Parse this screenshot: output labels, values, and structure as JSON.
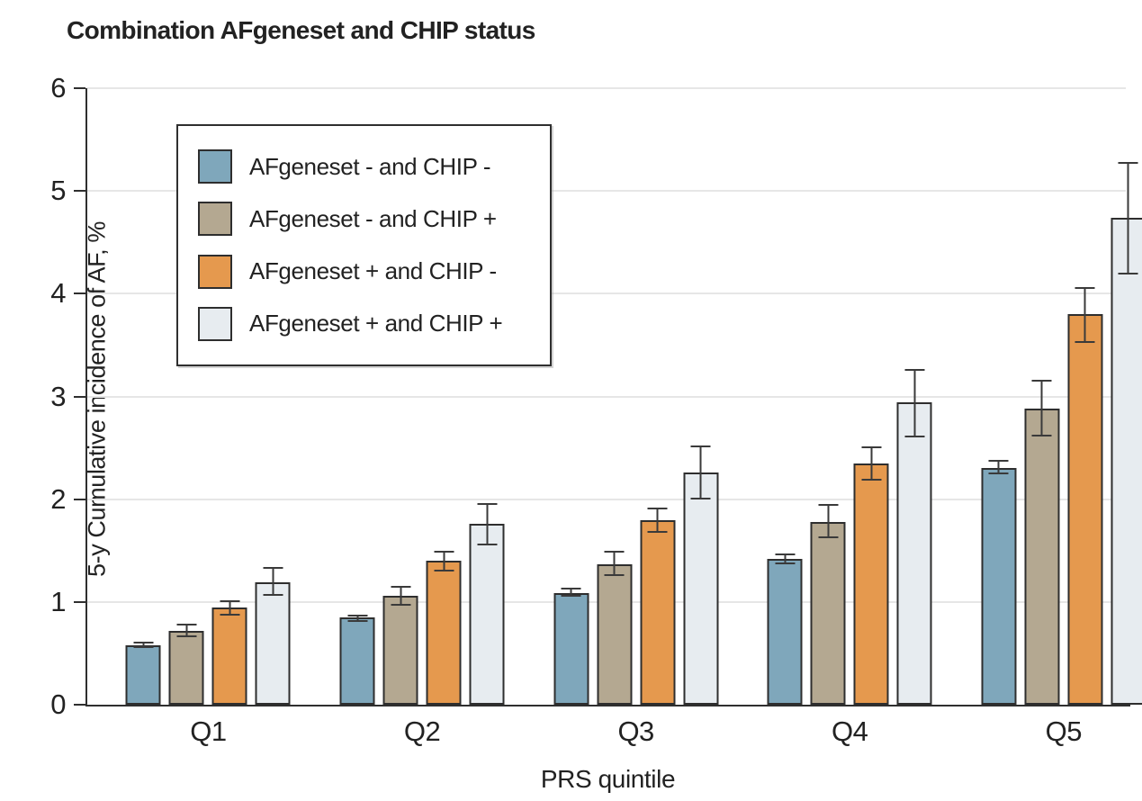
{
  "figure": {
    "title": "Combination AFgeneset and CHIP status"
  },
  "chart_data": {
    "type": "bar",
    "title": "Combination AFgeneset and CHIP status",
    "xlabel": "PRS quintile",
    "ylabel": "5-y Cumulative incidence of AF, %",
    "categories": [
      "Q1",
      "Q2",
      "Q3",
      "Q4",
      "Q5"
    ],
    "ylim": [
      0,
      6
    ],
    "yticks": [
      0,
      1,
      2,
      3,
      4,
      5,
      6
    ],
    "grid": "horizontal gridlines at 1-6, light gray",
    "legend_position": "upper-left inside plot",
    "error_bars": "95% CI whiskers with caps",
    "colors": {
      "axis": "#2f2f2f",
      "gridline": "#e6e6e6",
      "error_bar": "#3a3a3a",
      "bar_outline": "#2e2e2e"
    },
    "series": [
      {
        "name": "AFgeneset - and CHIP -",
        "color": "#7FA7BB",
        "values": [
          0.58,
          0.85,
          1.09,
          1.42,
          2.3
        ],
        "ci_low": [
          0.55,
          0.81,
          1.05,
          1.37,
          2.24
        ],
        "ci_high": [
          0.61,
          0.88,
          1.14,
          1.47,
          2.38
        ]
      },
      {
        "name": "AFgeneset - and CHIP +",
        "color": "#B4A891",
        "values": [
          0.72,
          1.06,
          1.37,
          1.78,
          2.88
        ],
        "ci_low": [
          0.66,
          0.96,
          1.25,
          1.62,
          2.61
        ],
        "ci_high": [
          0.79,
          1.16,
          1.5,
          1.95,
          3.16
        ]
      },
      {
        "name": "AFgeneset + and CHIP -",
        "color": "#E5994E",
        "values": [
          0.95,
          1.4,
          1.8,
          2.35,
          3.8
        ],
        "ci_low": [
          0.87,
          1.3,
          1.67,
          2.18,
          3.52
        ],
        "ci_high": [
          1.02,
          1.5,
          1.92,
          2.51,
          4.06
        ]
      },
      {
        "name": "AFgeneset + and CHIP +",
        "color": "#E7ECF0",
        "values": [
          1.19,
          1.76,
          2.26,
          2.94,
          4.74
        ],
        "ci_low": [
          1.06,
          1.55,
          2.0,
          2.6,
          4.19
        ],
        "ci_high": [
          1.34,
          1.96,
          2.52,
          3.27,
          5.28
        ]
      }
    ]
  }
}
